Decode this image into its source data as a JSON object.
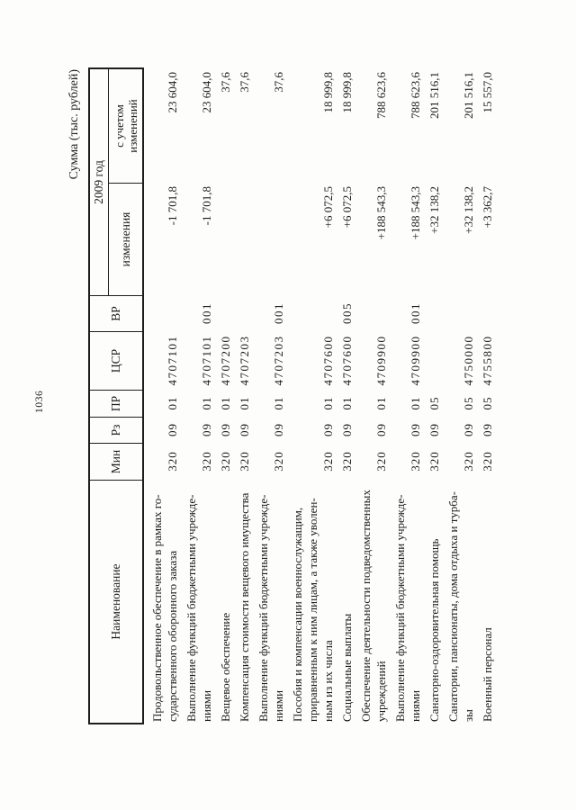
{
  "page": {
    "number": "1036",
    "caption": "Сумма (тыс. рублей)"
  },
  "table": {
    "header": {
      "name": "Наименование",
      "min": "Мин",
      "rz": "Рз",
      "pr": "ПР",
      "csr": "ЦСР",
      "vr": "ВР",
      "year_group": "2009 год",
      "changes": "изменения",
      "with_changes": "с учетом\nизменений"
    },
    "rows": [
      {
        "name": "Продовольственное обеспечение в рамках го-\nсударственного оборонного заказа",
        "min": "320",
        "rz": "09",
        "pr": "01",
        "csr": "4707101",
        "vr": "",
        "change": "-1 701,8",
        "total": "23 604,0"
      },
      {
        "name": "Выполнение функций бюджетными учрежде-\nниями",
        "min": "320",
        "rz": "09",
        "pr": "01",
        "csr": "4707101",
        "vr": "001",
        "change": "-1 701,8",
        "total": "23 604,0"
      },
      {
        "name": "Вещевое обеспечение",
        "min": "320",
        "rz": "09",
        "pr": "01",
        "csr": "4707200",
        "vr": "",
        "change": "",
        "total": "37,6"
      },
      {
        "name": "Компенсация стоимости вещевого имущества",
        "min": "320",
        "rz": "09",
        "pr": "01",
        "csr": "4707203",
        "vr": "",
        "change": "",
        "total": "37,6"
      },
      {
        "name": "Выполнение функций бюджетными учрежде-\nниями",
        "min": "320",
        "rz": "09",
        "pr": "01",
        "csr": "4707203",
        "vr": "001",
        "change": "",
        "total": "37,6"
      },
      {
        "name": "Пособия и компенсации военнослужащим,\nприравненным к ним лицам, а также уволен-\nным из их числа",
        "min": "320",
        "rz": "09",
        "pr": "01",
        "csr": "4707600",
        "vr": "",
        "change": "+6 072,5",
        "total": "18 999,8"
      },
      {
        "name": "Социальные выплаты",
        "min": "320",
        "rz": "09",
        "pr": "01",
        "csr": "4707600",
        "vr": "005",
        "change": "+6 072,5",
        "total": "18 999,8"
      },
      {
        "name": "Обеспечение деятельности подведомственных\nучреждений",
        "min": "320",
        "rz": "09",
        "pr": "01",
        "csr": "4709900",
        "vr": "",
        "change": "+188 543,3",
        "total": "788 623,6"
      },
      {
        "name": "Выполнение функций бюджетными учрежде-\nниями",
        "min": "320",
        "rz": "09",
        "pr": "01",
        "csr": "4709900",
        "vr": "001",
        "change": "+188 543,3",
        "total": "788 623,6"
      },
      {
        "name": "Санаторно-оздоровительная помощь",
        "min": "320",
        "rz": "09",
        "pr": "05",
        "csr": "",
        "vr": "",
        "change": "+32 138,2",
        "total": "201 516,1"
      },
      {
        "name": "Санатории, пансионаты, дома отдыха и турба-\nзы",
        "min": "320",
        "rz": "09",
        "pr": "05",
        "csr": "4750000",
        "vr": "",
        "change": "+32 138,2",
        "total": "201 516,1"
      },
      {
        "name": "Военный персонал",
        "min": "320",
        "rz": "09",
        "pr": "05",
        "csr": "4755800",
        "vr": "",
        "change": "+3 362,7",
        "total": "15 557,0"
      }
    ]
  }
}
